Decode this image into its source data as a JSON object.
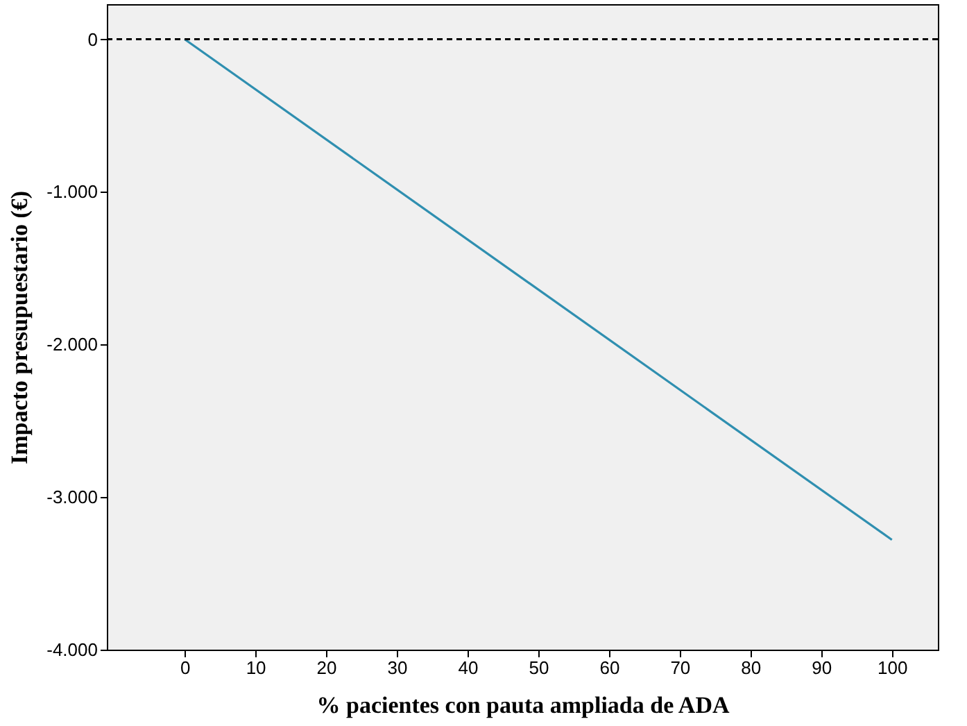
{
  "chart_data": {
    "type": "line",
    "xlabel": "% pacientes con pauta ampliada de ADA",
    "ylabel": "Impacto presupuestario (€)",
    "x": [
      0,
      100
    ],
    "series": [
      {
        "color": "#2f8fb0",
        "values": [
          0,
          -3280
        ]
      }
    ],
    "xlim": [
      -11,
      106.5
    ],
    "xticks": [
      0,
      10,
      20,
      30,
      40,
      50,
      60,
      70,
      80,
      90,
      100
    ],
    "ylim": [
      -4000,
      230
    ],
    "yticks": [
      {
        "value": -4000,
        "label": "-4.000"
      },
      {
        "value": -3000,
        "label": "-3.000"
      },
      {
        "value": -2000,
        "label": "-2.000"
      },
      {
        "value": -1000,
        "label": "-1.000"
      },
      0
    ],
    "ref_lines": [
      {
        "axis": "y",
        "value": 0,
        "color": "#000000",
        "line_style": "dashed"
      }
    ],
    "grid": false,
    "marker": "none",
    "line_style": "solid"
  }
}
